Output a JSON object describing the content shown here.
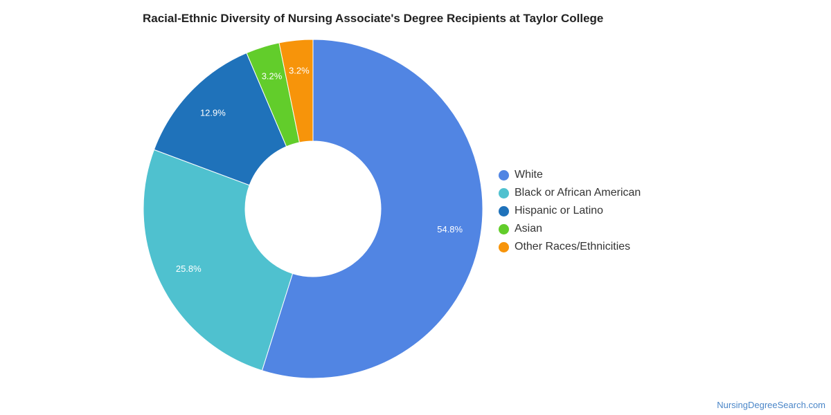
{
  "chart_data": {
    "type": "pie",
    "title": "Racial-Ethnic Diversity of Nursing Associate's Degree Recipients at Taylor College",
    "donut": true,
    "legend_position": "right",
    "slices": [
      {
        "name": "White",
        "value": 54.8,
        "label": "54.8%",
        "color": "#5185e3"
      },
      {
        "name": "Black or African American",
        "value": 25.8,
        "label": "25.8%",
        "color": "#4fc1cf"
      },
      {
        "name": "Hispanic or Latino",
        "value": 12.9,
        "label": "12.9%",
        "color": "#1f72ba"
      },
      {
        "name": "Asian",
        "value": 3.2,
        "label": "3.2%",
        "color": "#62cd2b"
      },
      {
        "name": "Other Races/Ethnicities",
        "value": 3.2,
        "label": "3.2%",
        "color": "#f7940a"
      }
    ]
  },
  "footer": {
    "source": "NursingDegreeSearch.com"
  }
}
